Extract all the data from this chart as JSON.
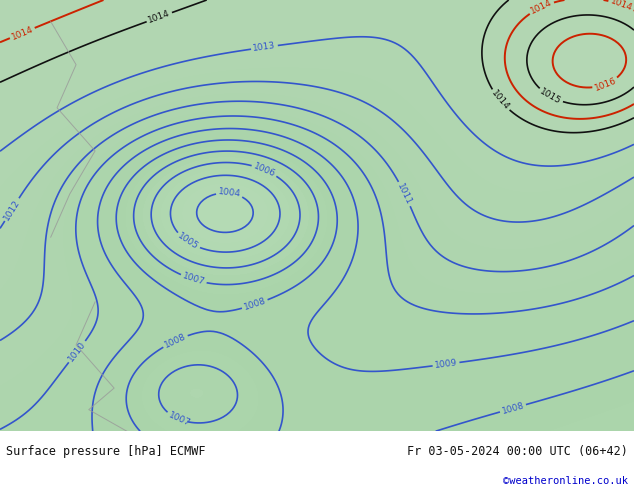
{
  "title_left": "Surface pressure [hPa] ECMWF",
  "title_right": "Fr 03-05-2024 00:00 UTC (06+42)",
  "credit": "©weatheronline.co.uk",
  "credit_color": "#0000cc",
  "bg_color": "#aad4aa",
  "land_color": "#c8e6c8",
  "sea_color": "#cce0cc",
  "contour_color_blue": "#3355cc",
  "contour_color_red": "#cc2200",
  "contour_color_black": "#111111",
  "label_color_blue": "#3355cc",
  "label_color_red": "#cc2200",
  "label_color_black": "#111111",
  "footer_bg": "#e8e8e8",
  "footer_text_color": "#111111",
  "pressure_min": 1002,
  "pressure_max": 1016,
  "contour_interval": 1,
  "figsize": [
    6.34,
    4.9
  ],
  "dpi": 100
}
